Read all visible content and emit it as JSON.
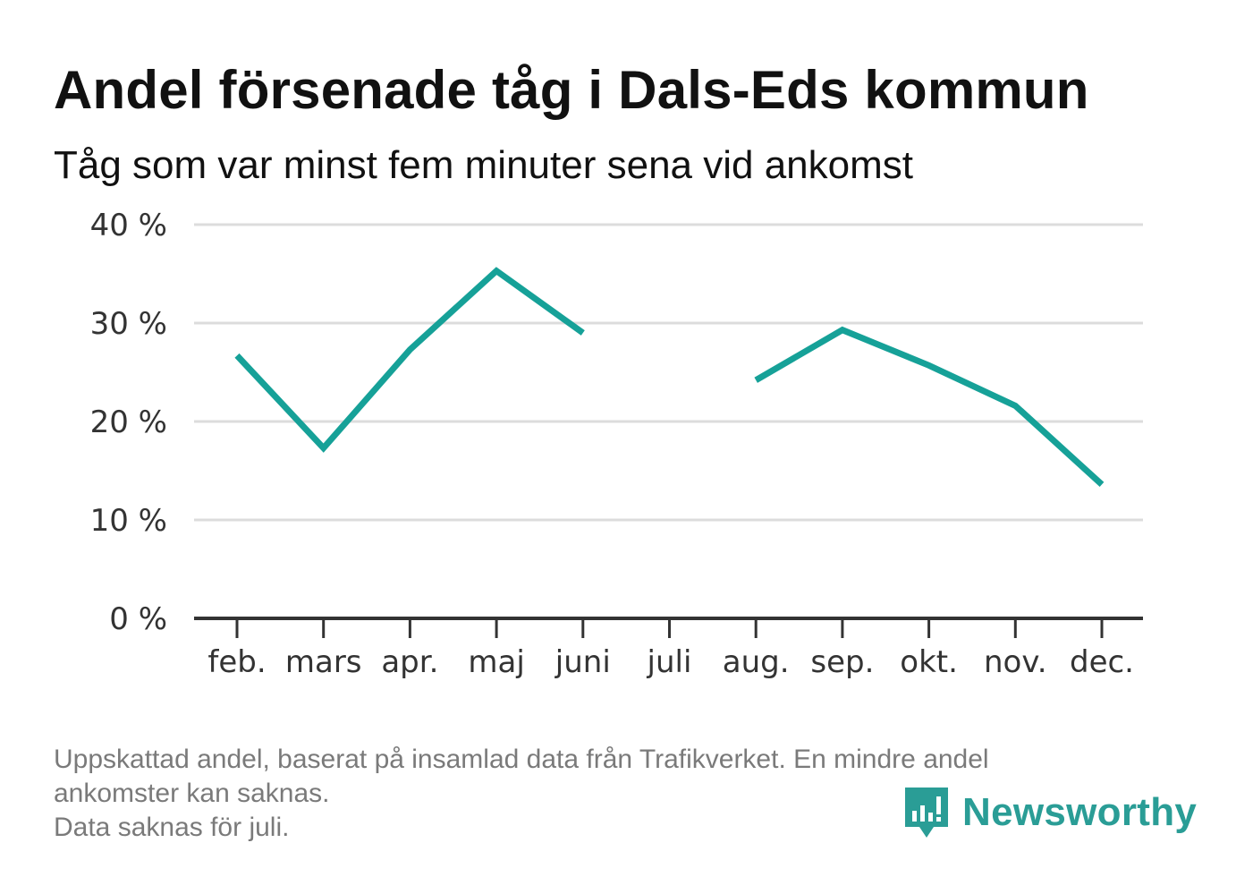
{
  "title": "Andel försenade tåg i Dals-Eds kommun",
  "subtitle": "Tåg som var minst fem minuter sena vid ankomst",
  "footnote": {
    "line1": "Uppskattad andel, baserat på insamlad data från Trafikverket. En mindre andel",
    "line2": "ankomster kan saknas.",
    "line3": "Data saknas för juli."
  },
  "brand": {
    "name": "Newsworthy",
    "color": "#2a9d96",
    "icon": "newsworthy-logo-icon"
  },
  "chart_data": {
    "type": "line",
    "categories": [
      "feb.",
      "mars",
      "apr.",
      "maj",
      "juni",
      "juli",
      "aug.",
      "sep.",
      "okt.",
      "nov.",
      "dec."
    ],
    "series": [
      {
        "values": [
          26.7,
          17.3,
          27.3,
          35.3,
          29.0,
          null,
          24.2,
          29.3,
          25.7,
          21.6,
          13.6
        ],
        "color": "#16a198"
      }
    ],
    "ylim": [
      0,
      40
    ],
    "yticks": [
      0,
      10,
      20,
      30,
      40
    ],
    "ytick_labels": [
      "0 %",
      "10 %",
      "20 %",
      "30 %",
      "40 %"
    ],
    "grid": true,
    "missing": [
      "juli"
    ]
  }
}
